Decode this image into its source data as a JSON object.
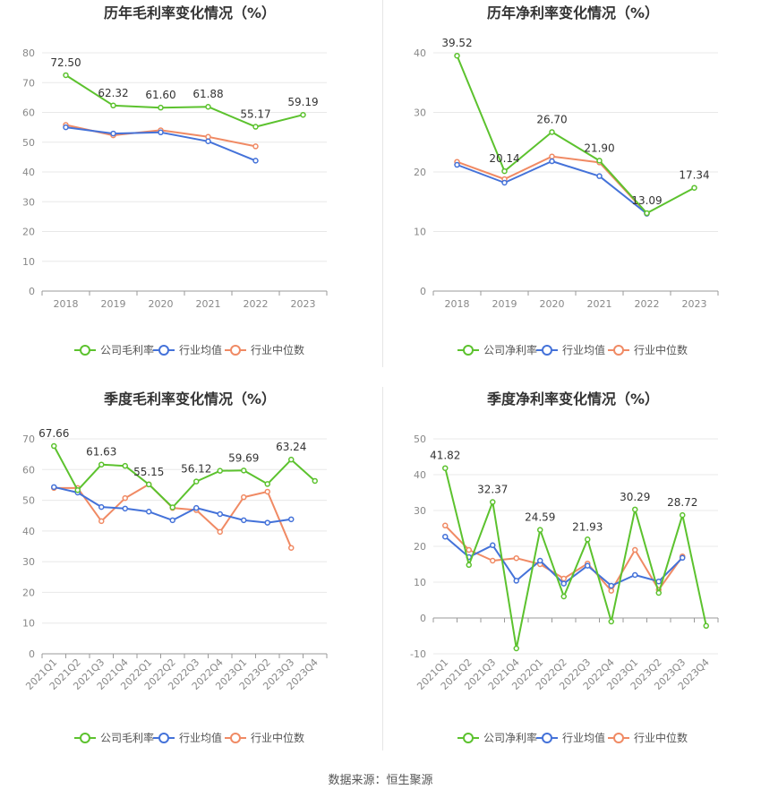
{
  "colors": {
    "company": "#5cc22e",
    "avg": "#4472d9",
    "median": "#f08a64",
    "grid": "#e8e8e8",
    "axis": "#888888",
    "text": "#333333"
  },
  "footer": {
    "source": "数据来源：恒生聚源"
  },
  "chart_data": [
    {
      "type": "line",
      "title": "历年毛利率变化情况（%）",
      "categories": [
        "2018",
        "2019",
        "2020",
        "2021",
        "2022",
        "2023"
      ],
      "ylim": [
        0,
        80
      ],
      "yticks": [
        0,
        10,
        20,
        30,
        40,
        50,
        60,
        70,
        80
      ],
      "grid": true,
      "legend": "bottom-center",
      "series": [
        {
          "name": "公司毛利率",
          "color_key": "company",
          "values": [
            72.5,
            62.32,
            61.6,
            61.88,
            55.17,
            59.19
          ],
          "labels": [
            "72.50",
            "62.32",
            "61.60",
            "61.88",
            "55.17",
            "59.19"
          ]
        },
        {
          "name": "行业均值",
          "color_key": "avg",
          "values": [
            55.0,
            52.9,
            53.3,
            50.3,
            43.8,
            null
          ]
        },
        {
          "name": "行业中位数",
          "color_key": "median",
          "values": [
            55.8,
            52.3,
            54.0,
            51.8,
            48.6,
            null
          ]
        }
      ]
    },
    {
      "type": "line",
      "title": "历年净利率变化情况（%）",
      "categories": [
        "2018",
        "2019",
        "2020",
        "2021",
        "2022",
        "2023"
      ],
      "ylim": [
        0,
        40
      ],
      "yticks": [
        0,
        10,
        20,
        30,
        40
      ],
      "grid": true,
      "legend": "bottom-center",
      "series": [
        {
          "name": "公司净利率",
          "color_key": "company",
          "values": [
            39.52,
            20.14,
            26.7,
            21.9,
            13.09,
            17.34
          ],
          "labels": [
            "39.52",
            "20.14",
            "26.70",
            "21.90",
            "13.09",
            "17.34"
          ]
        },
        {
          "name": "行业均值",
          "color_key": "avg",
          "values": [
            21.2,
            18.2,
            21.8,
            19.3,
            13.0,
            null
          ]
        },
        {
          "name": "行业中位数",
          "color_key": "median",
          "values": [
            21.7,
            18.8,
            22.6,
            21.6,
            13.0,
            null
          ]
        }
      ]
    },
    {
      "type": "line",
      "title": "季度毛利率变化情况（%）",
      "categories": [
        "2021Q1",
        "2021Q2",
        "2021Q3",
        "2021Q4",
        "2022Q1",
        "2022Q2",
        "2022Q3",
        "2022Q4",
        "2023Q1",
        "2023Q2",
        "2023Q3",
        "2023Q4"
      ],
      "ylim": [
        0,
        70
      ],
      "yticks": [
        0,
        10,
        20,
        30,
        40,
        50,
        60,
        70
      ],
      "grid": true,
      "legend": "bottom-center",
      "series": [
        {
          "name": "公司毛利率",
          "color_key": "company",
          "values": [
            67.66,
            53.3,
            61.63,
            61.2,
            55.15,
            47.7,
            56.12,
            59.6,
            59.69,
            55.3,
            63.24,
            56.3
          ],
          "labels": [
            "67.66",
            "",
            "61.63",
            "",
            "55.15",
            "",
            "56.12",
            "",
            "59.69",
            "",
            "63.24",
            ""
          ]
        },
        {
          "name": "行业均值",
          "color_key": "avg",
          "values": [
            54.3,
            52.5,
            47.8,
            47.3,
            46.3,
            43.5,
            47.5,
            45.5,
            43.5,
            42.7,
            43.8,
            null
          ]
        },
        {
          "name": "行业中位数",
          "color_key": "median",
          "values": [
            54.0,
            54.0,
            43.2,
            50.7,
            55.2,
            47.5,
            46.8,
            39.7,
            51.0,
            52.8,
            34.5,
            null
          ]
        }
      ]
    },
    {
      "type": "line",
      "title": "季度净利率变化情况（%）",
      "categories": [
        "2021Q1",
        "2021Q2",
        "2021Q3",
        "2021Q4",
        "2022Q1",
        "2022Q2",
        "2022Q3",
        "2022Q4",
        "2023Q1",
        "2023Q2",
        "2023Q3",
        "2023Q4"
      ],
      "ylim": [
        -10,
        50
      ],
      "yticks": [
        -10,
        0,
        10,
        20,
        30,
        40,
        50
      ],
      "grid": true,
      "legend": "bottom-center",
      "series": [
        {
          "name": "公司净利率",
          "color_key": "company",
          "values": [
            41.82,
            14.8,
            32.37,
            -8.5,
            24.59,
            6.0,
            21.93,
            -1.0,
            30.29,
            7.0,
            28.72,
            -2.2
          ],
          "labels": [
            "41.82",
            "",
            "32.37",
            "",
            "24.59",
            "",
            "21.93",
            "",
            "30.29",
            "",
            "28.72",
            ""
          ]
        },
        {
          "name": "行业均值",
          "color_key": "avg",
          "values": [
            22.7,
            17.0,
            20.3,
            10.4,
            16.0,
            9.6,
            14.6,
            9.0,
            12.0,
            10.2,
            16.8,
            null
          ]
        },
        {
          "name": "行业中位数",
          "color_key": "median",
          "values": [
            25.8,
            19.0,
            16.0,
            16.7,
            15.0,
            11.0,
            15.2,
            7.6,
            19.0,
            7.9,
            17.2,
            null
          ]
        }
      ]
    }
  ]
}
